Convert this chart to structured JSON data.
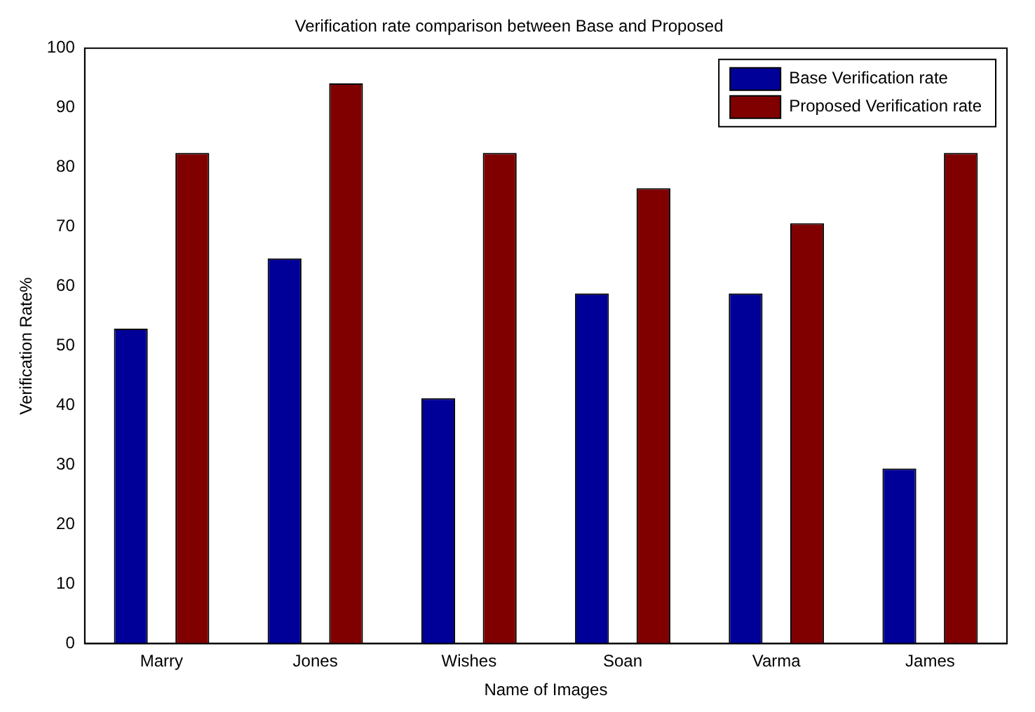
{
  "chart_data": {
    "type": "bar",
    "title": "Verification rate comparison between Base and Proposed",
    "xlabel": "Name of Images",
    "ylabel": "Verification Rate%",
    "categories": [
      "Marry",
      "Jones",
      "Wishes",
      "Soan",
      "Varma",
      "James"
    ],
    "series": [
      {
        "name": "Base Verification rate",
        "color": "#000099",
        "values": [
          52.9,
          64.7,
          41.2,
          58.8,
          58.8,
          29.4
        ]
      },
      {
        "name": "Proposed Verification rate",
        "color": "#800000",
        "values": [
          82.4,
          94.1,
          82.4,
          76.5,
          70.6,
          82.4
        ]
      }
    ],
    "ylim": [
      0,
      100
    ],
    "yticks": [
      0,
      10,
      20,
      30,
      40,
      50,
      60,
      70,
      80,
      90,
      100
    ],
    "grid": false,
    "legend": "top right"
  }
}
